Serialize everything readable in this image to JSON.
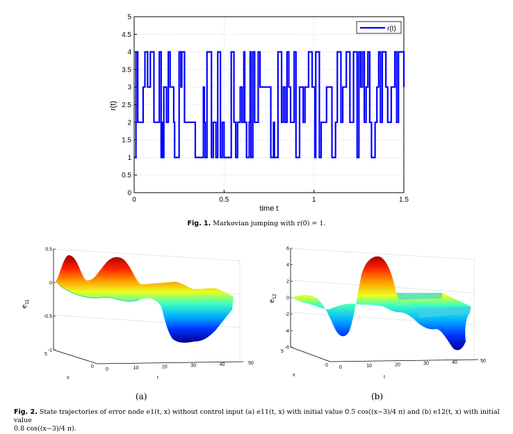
{
  "fig1": {
    "chart_data": {
      "type": "line",
      "series": [
        {
          "name": "r(t)",
          "color": "#0000ff",
          "x": [
            0,
            0.01,
            0.02,
            0.05,
            0.06,
            0.075,
            0.09,
            0.11,
            0.14,
            0.15,
            0.155,
            0.16,
            0.165,
            0.18,
            0.19,
            0.2,
            0.22,
            0.225,
            0.25,
            0.26,
            0.265,
            0.28,
            0.3,
            0.34,
            0.385,
            0.39,
            0.395,
            0.405,
            0.43,
            0.44,
            0.455,
            0.465,
            0.48,
            0.49,
            0.5,
            0.54,
            0.555,
            0.565,
            0.575,
            0.59,
            0.6,
            0.61,
            0.615,
            0.625,
            0.64,
            0.645,
            0.65,
            0.66,
            0.67,
            0.69,
            0.7,
            0.72,
            0.76,
            0.775,
            0.78,
            0.8,
            0.82,
            0.83,
            0.84,
            0.85,
            0.86,
            0.87,
            0.89,
            0.9,
            0.92,
            0.94,
            0.95,
            0.97,
            0.99,
            1.005,
            1.01,
            1.03,
            1.04,
            1.07,
            1.1,
            1.12,
            1.13,
            1.15,
            1.16,
            1.18,
            1.2,
            1.22,
            1.24,
            1.25,
            1.26,
            1.27,
            1.28,
            1.29,
            1.3,
            1.31,
            1.32,
            1.34,
            1.35,
            1.36,
            1.37,
            1.38,
            1.4,
            1.41,
            1.43,
            1.45,
            1.46,
            1.47,
            1.5
          ],
          "y": [
            1,
            4,
            2,
            3,
            4,
            3,
            4,
            2,
            4,
            1,
            2,
            1,
            3,
            2,
            4,
            3,
            2,
            1,
            4,
            3,
            4,
            2,
            2,
            1,
            3,
            2,
            1,
            4,
            1,
            2,
            1,
            4,
            1,
            2,
            1,
            4,
            2,
            1,
            2,
            3,
            2,
            4,
            2,
            1,
            2,
            4,
            1,
            4,
            2,
            4,
            3,
            3,
            1,
            2,
            1,
            4,
            2,
            3,
            2,
            4,
            3,
            2,
            4,
            1,
            3,
            2,
            3,
            4,
            3,
            1,
            4,
            1,
            2,
            3,
            1,
            2,
            4,
            2,
            3,
            4,
            2,
            4,
            1,
            4,
            3,
            4,
            2,
            3,
            4,
            2,
            1,
            2,
            3,
            4,
            2,
            4,
            3,
            2,
            3,
            4,
            2,
            4,
            3
          ]
        }
      ],
      "xlim": [
        0,
        1.5
      ],
      "ylim": [
        0,
        5
      ],
      "xticks": [
        "0",
        "0.5",
        "1",
        "1.5"
      ],
      "yticks": [
        "0",
        "0.5",
        "1",
        "1.5",
        "2",
        "2.5",
        "3",
        "3.5",
        "4",
        "4.5",
        "5"
      ],
      "xlabel": "time t",
      "ylabel": "r(t)",
      "legend": "r(t)",
      "legend_position": "top-right",
      "grid": "dotted"
    },
    "caption_label": "Fig. 1.",
    "caption_text": "Markovian jumping with r(0) = 1."
  },
  "fig2a": {
    "zticks": [
      "0.5",
      "0",
      "-0.5",
      "-1"
    ],
    "zlabel": "e",
    "zlabel_sub": "11",
    "xticks": [
      "5",
      "0"
    ],
    "xlabel": "x",
    "tticks": [
      "0",
      "10",
      "20",
      "30",
      "40",
      "50"
    ],
    "tlabel": "t",
    "sublabel": "(a)"
  },
  "fig2b": {
    "zticks": [
      "6",
      "4",
      "2",
      "0",
      "-2",
      "-4",
      "-6"
    ],
    "zlabel": "e",
    "zlabel_sub": "12",
    "xticks": [
      "5",
      "0"
    ],
    "xlabel": "x",
    "tticks": [
      "0",
      "10",
      "20",
      "30",
      "40",
      "50"
    ],
    "tlabel": "t",
    "sublabel": "(b)"
  },
  "fig2_caption": {
    "label": "Fig. 2.",
    "text": "State trajectories of error node e1(t, x) without control input (a) e11(t, x) with initial value 0.5 cos((x−3)/4 π) and (b) e12(t, x) with initial value",
    "text2": "0.8 cos((x−3)/4 π)."
  }
}
